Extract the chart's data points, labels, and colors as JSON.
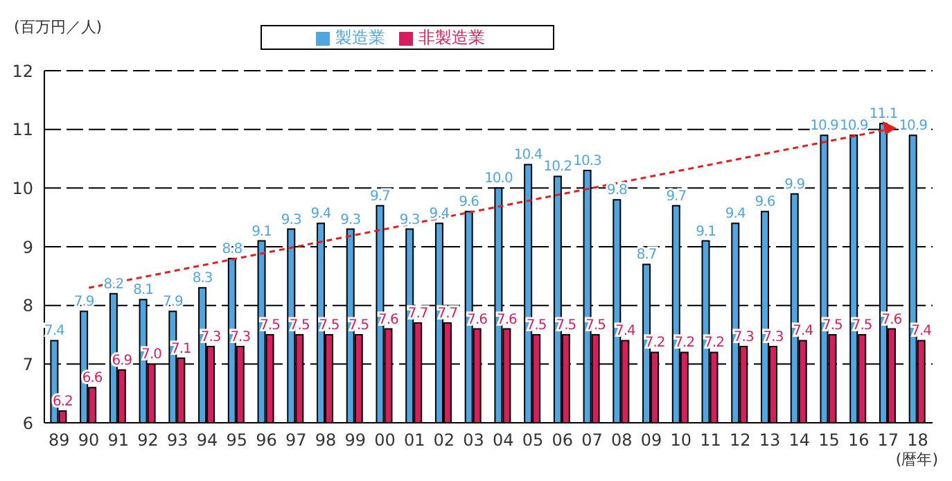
{
  "chart_data": {
    "type": "bar",
    "ylabel": "(百万円／人)",
    "xlabel": "(暦年)",
    "categories": [
      "89",
      "90",
      "91",
      "92",
      "93",
      "94",
      "95",
      "96",
      "97",
      "98",
      "99",
      "00",
      "01",
      "02",
      "03",
      "04",
      "05",
      "06",
      "07",
      "08",
      "09",
      "10",
      "11",
      "12",
      "13",
      "14",
      "15",
      "16",
      "17",
      "18"
    ],
    "series": [
      {
        "name": "製造業",
        "color": "#52a5de",
        "values": [
          7.4,
          7.9,
          8.2,
          8.1,
          7.9,
          8.3,
          8.8,
          9.1,
          9.3,
          9.4,
          9.3,
          9.7,
          9.3,
          9.4,
          9.6,
          10.0,
          10.4,
          10.2,
          10.3,
          9.8,
          8.7,
          9.7,
          9.1,
          9.4,
          9.6,
          9.9,
          10.9,
          10.9,
          11.1,
          10.9
        ],
        "value_labels": [
          "7.4",
          "7.9",
          "8.2",
          "8.1",
          "7.9",
          "8.3",
          "8.8",
          "9.1",
          "9.3",
          "9.4",
          "9.3",
          "9.7",
          "9.3",
          "9.4",
          "9.6",
          "10.0",
          "10.4",
          "10.2",
          "10.3",
          "9.8",
          "8.7",
          "9.7",
          "9.1",
          "9.4",
          "9.6",
          "9.9",
          "10.9",
          "10.9",
          "11.1",
          "10.9"
        ]
      },
      {
        "name": "非製造業",
        "color": "#d41f5f",
        "values": [
          6.2,
          6.6,
          6.9,
          7.0,
          7.1,
          7.3,
          7.3,
          7.5,
          7.5,
          7.5,
          7.5,
          7.6,
          7.7,
          7.7,
          7.6,
          7.6,
          7.5,
          7.5,
          7.5,
          7.4,
          7.2,
          7.2,
          7.2,
          7.3,
          7.3,
          7.4,
          7.5,
          7.5,
          7.6,
          7.4
        ],
        "value_labels": [
          "6.2",
          "6.6",
          "6.9",
          "7.0",
          "7.1",
          "7.3",
          "7.3",
          "7.5",
          "7.5",
          "7.5",
          "7.5",
          "7.6",
          "7.7",
          "7.7",
          "7.6",
          "7.6",
          "7.5",
          "7.5",
          "7.5",
          "7.4",
          "7.2",
          "7.2",
          "7.2",
          "7.3",
          "7.3",
          "7.4",
          "7.5",
          "7.5",
          "7.6",
          "7.4"
        ]
      },
      {
        "type": "line",
        "color": "#e0201f",
        "line_style": "dashed",
        "x": [
          "90",
          "17"
        ],
        "values": [
          8.3,
          11.0
        ]
      }
    ],
    "ylim": [
      6,
      12
    ],
    "yticks": [
      6,
      7,
      8,
      9,
      10,
      11,
      12
    ],
    "grid": "y",
    "legend": "top"
  }
}
